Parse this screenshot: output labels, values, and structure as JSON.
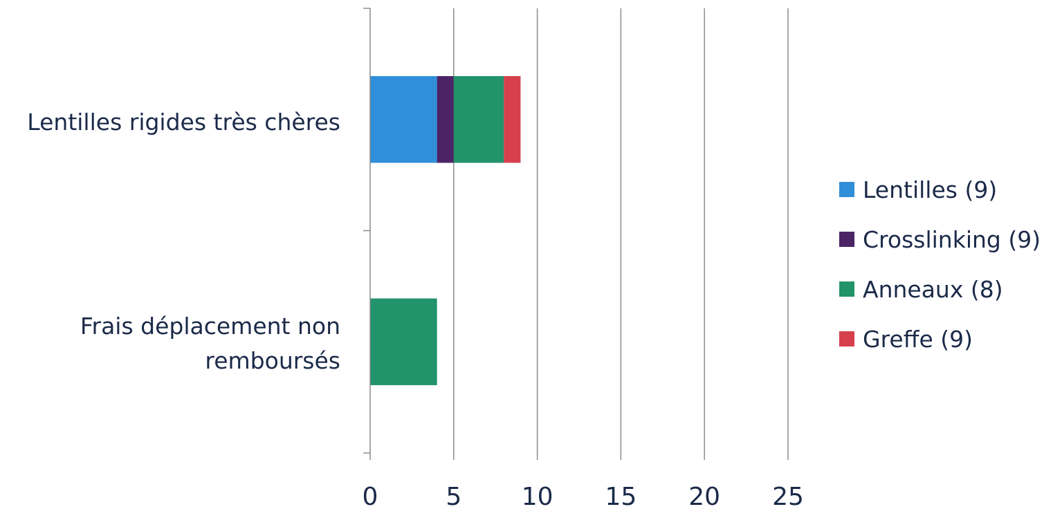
{
  "chart_data": {
    "type": "bar",
    "orientation": "horizontal",
    "stacked": true,
    "categories": [
      "Lentilles rigides très chères",
      "Frais déplacement non remboursés"
    ],
    "series": [
      {
        "name": "Lentilles (9)",
        "color": "#2f8fd8",
        "values": [
          4,
          0
        ]
      },
      {
        "name": "Crosslinking (9)",
        "color": "#4b2466",
        "values": [
          1,
          0
        ]
      },
      {
        "name": "Anneaux (8)",
        "color": "#22936a",
        "values": [
          3,
          4
        ]
      },
      {
        "name": "Greffe (9)",
        "color": "#d6404c",
        "values": [
          1,
          0
        ]
      }
    ],
    "xlim": [
      0,
      25
    ],
    "xticks": [
      "0",
      "5",
      "10",
      "15",
      "20",
      "25"
    ],
    "grid": true,
    "legend_position": "right"
  }
}
